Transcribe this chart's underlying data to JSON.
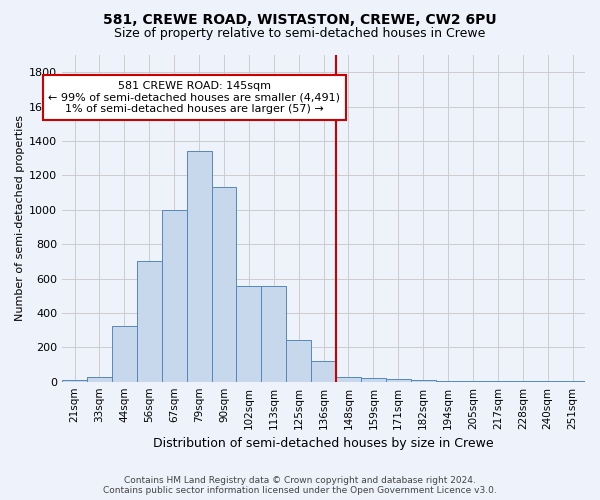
{
  "title": "581, CREWE ROAD, WISTASTON, CREWE, CW2 6PU",
  "subtitle": "Size of property relative to semi-detached houses in Crewe",
  "xlabel": "Distribution of semi-detached houses by size in Crewe",
  "ylabel": "Number of semi-detached properties",
  "footer_line1": "Contains HM Land Registry data © Crown copyright and database right 2024.",
  "footer_line2": "Contains public sector information licensed under the Open Government Licence v3.0.",
  "annotation_title": "581 CREWE ROAD: 145sqm",
  "annotation_line1": "← 99% of semi-detached houses are smaller (4,491)",
  "annotation_line2": "1% of semi-detached houses are larger (57) →",
  "categories": [
    "21sqm",
    "33sqm",
    "44sqm",
    "56sqm",
    "67sqm",
    "79sqm",
    "90sqm",
    "102sqm",
    "113sqm",
    "125sqm",
    "136sqm",
    "148sqm",
    "159sqm",
    "171sqm",
    "182sqm",
    "194sqm",
    "205sqm",
    "217sqm",
    "228sqm",
    "240sqm",
    "251sqm"
  ],
  "values": [
    10,
    30,
    325,
    700,
    1000,
    1340,
    1130,
    555,
    555,
    240,
    120,
    30,
    20,
    15,
    10,
    5,
    5,
    3,
    2,
    2,
    2
  ],
  "bar_color": "#c8d8ec",
  "bar_edge_color": "#5588bb",
  "vline_color": "#cc0000",
  "vline_x": 10.5,
  "annotation_box_color": "#cc0000",
  "background_color": "#eef2fb",
  "grid_color": "#cccccc",
  "ylim": [
    0,
    1900
  ],
  "yticks": [
    0,
    200,
    400,
    600,
    800,
    1000,
    1200,
    1400,
    1600,
    1800
  ],
  "title_fontsize": 10,
  "subtitle_fontsize": 9,
  "ylabel_fontsize": 8,
  "xlabel_fontsize": 9,
  "tick_fontsize": 7.5,
  "footer_fontsize": 6.5,
  "annotation_fontsize": 8
}
